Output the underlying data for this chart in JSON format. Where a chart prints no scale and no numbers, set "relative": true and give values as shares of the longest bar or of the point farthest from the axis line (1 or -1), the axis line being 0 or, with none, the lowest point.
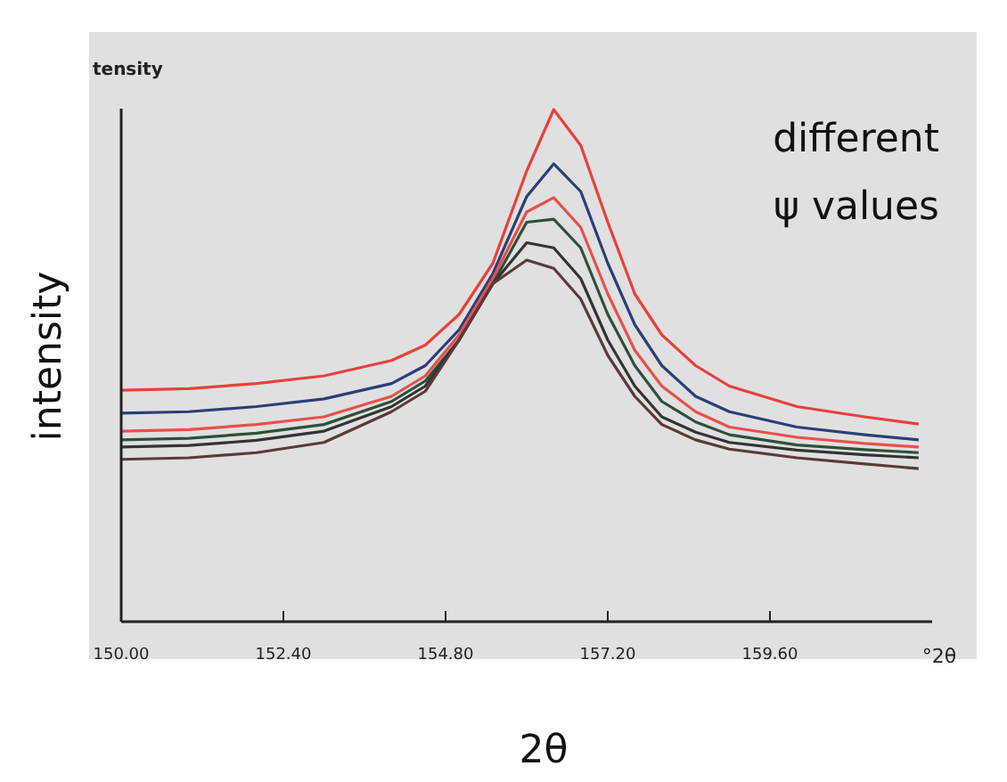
{
  "chart_data": {
    "type": "line",
    "relative": true,
    "xlabel": "2θ",
    "ylabel": "intensity",
    "annotations": [
      "tensity",
      "°2θ",
      "different\nψ values"
    ],
    "x": [
      150,
      151,
      152,
      153,
      154,
      154.5,
      155,
      155.5,
      156,
      156.4,
      156.8,
      157.2,
      157.6,
      158,
      158.5,
      159,
      160,
      161,
      161.8
    ],
    "xlim": [
      150,
      162
    ],
    "xticks": [
      {
        "value": 150,
        "label": "150.00"
      },
      {
        "value": 152.4,
        "label": "152.40"
      },
      {
        "value": 154.8,
        "label": "154.80"
      },
      {
        "value": 157.2,
        "label": "157.20"
      },
      {
        "value": 159.6,
        "label": "159.60"
      }
    ],
    "grid": false,
    "line_style": "solid",
    "series": [
      {
        "color": "#e8403c",
        "values": [
          0.452,
          0.455,
          0.465,
          0.48,
          0.51,
          0.54,
          0.6,
          0.7,
          0.88,
          1.0,
          0.93,
          0.78,
          0.64,
          0.56,
          0.5,
          0.46,
          0.42,
          0.4,
          0.386
        ]
      },
      {
        "color": "#2c3e78",
        "values": [
          0.407,
          0.41,
          0.42,
          0.435,
          0.465,
          0.5,
          0.57,
          0.68,
          0.83,
          0.894,
          0.84,
          0.7,
          0.58,
          0.5,
          0.44,
          0.41,
          0.38,
          0.365,
          0.355
        ]
      },
      {
        "color": "#e8504a",
        "values": [
          0.372,
          0.375,
          0.385,
          0.4,
          0.44,
          0.48,
          0.56,
          0.67,
          0.8,
          0.828,
          0.77,
          0.64,
          0.53,
          0.46,
          0.41,
          0.38,
          0.36,
          0.348,
          0.341
        ]
      },
      {
        "color": "#2f4f3a",
        "values": [
          0.355,
          0.358,
          0.368,
          0.385,
          0.43,
          0.47,
          0.55,
          0.66,
          0.78,
          0.786,
          0.73,
          0.6,
          0.5,
          0.43,
          0.39,
          0.365,
          0.345,
          0.336,
          0.33
        ]
      },
      {
        "color": "#333333",
        "values": [
          0.341,
          0.344,
          0.354,
          0.372,
          0.42,
          0.46,
          0.55,
          0.66,
          0.74,
          0.73,
          0.67,
          0.55,
          0.46,
          0.4,
          0.37,
          0.35,
          0.335,
          0.326,
          0.32
        ]
      },
      {
        "color": "#5a3a3a",
        "values": [
          0.317,
          0.32,
          0.33,
          0.35,
          0.41,
          0.45,
          0.55,
          0.66,
          0.706,
          0.69,
          0.63,
          0.52,
          0.44,
          0.385,
          0.355,
          0.337,
          0.32,
          0.308,
          0.299
        ]
      }
    ]
  }
}
